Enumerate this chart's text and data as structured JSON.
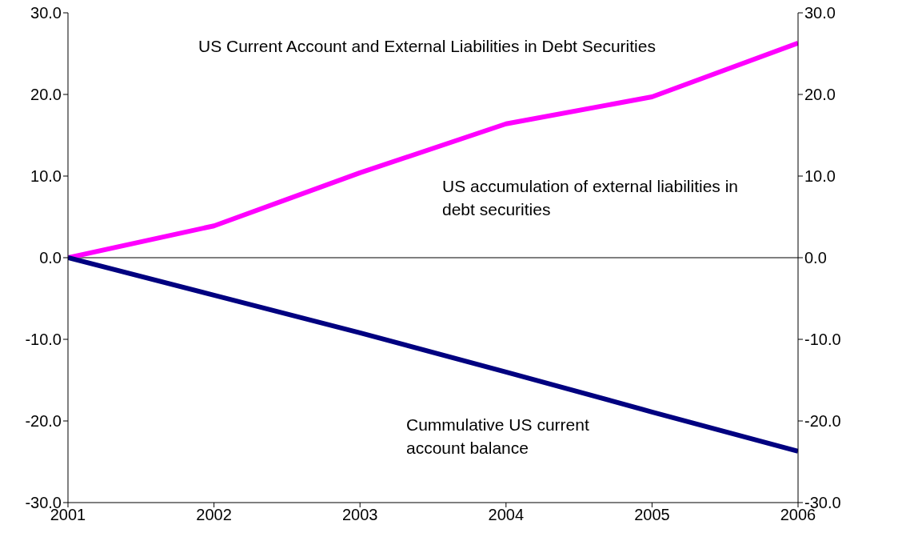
{
  "chart_data": {
    "type": "line",
    "title": "US Current Account and External Liabilities in Debt Securities",
    "x": [
      2001,
      2002,
      2003,
      2004,
      2005,
      2006
    ],
    "xlim": [
      2001,
      2006
    ],
    "xticks": [
      2001,
      2002,
      2003,
      2004,
      2005,
      2006
    ],
    "ylim": [
      -30,
      30
    ],
    "yticks": [
      {
        "value": -30,
        "label": "-30.0"
      },
      {
        "value": -20,
        "label": "-20.0"
      },
      {
        "value": -10,
        "label": "-10.0"
      },
      {
        "value": 0,
        "label": "0.0"
      },
      {
        "value": 10,
        "label": "10.0"
      },
      {
        "value": 20,
        "label": "20.0"
      },
      {
        "value": 30,
        "label": "30.0"
      }
    ],
    "y2lim": [
      -30,
      30
    ],
    "y2ticks": [
      {
        "value": -30,
        "label": "-30.0"
      },
      {
        "value": -20,
        "label": "-20.0"
      },
      {
        "value": -10,
        "label": "-10.0"
      },
      {
        "value": 0,
        "label": "0.0"
      },
      {
        "value": 10,
        "label": "10.0"
      },
      {
        "value": 20,
        "label": "20.0"
      },
      {
        "value": 30,
        "label": "30.0"
      }
    ],
    "series": [
      {
        "name": "US accumulation of external liabilities in debt securities",
        "color": "#ff00ff",
        "values": [
          0,
          3.9,
          10.4,
          16.4,
          19.7,
          26.3
        ]
      },
      {
        "name": "Cummulative US current account balance",
        "color": "#000080",
        "values": [
          0,
          -4.6,
          -9.2,
          -14.0,
          -18.9,
          -23.7
        ]
      }
    ],
    "ref_lines": [
      {
        "axis": "y",
        "value": 0,
        "color": "#000000"
      }
    ],
    "grid": false,
    "marker": "none",
    "line_style": "solid"
  }
}
